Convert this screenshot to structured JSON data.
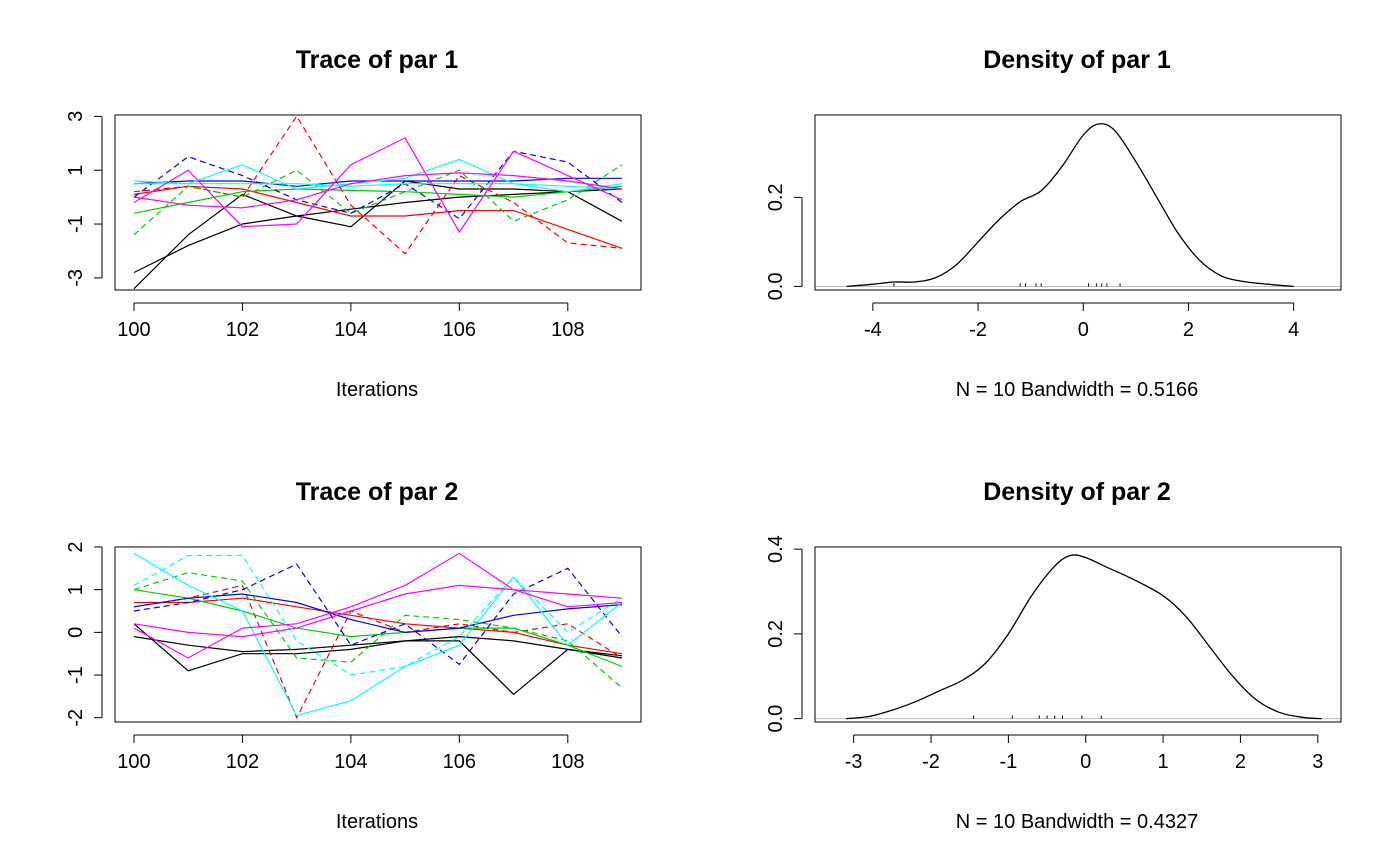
{
  "chart_data": [
    {
      "id": "trace1",
      "type": "line",
      "title": "Trace of par 1",
      "xlabel": "Iterations",
      "ylabel": "",
      "xlim": [
        99.65,
        109.35
      ],
      "ylim": [
        -3.45,
        3.05
      ],
      "xticks": [
        "100",
        "102",
        "104",
        "106",
        "108"
      ],
      "yticks": [
        "-3",
        "-1",
        "1",
        "3"
      ],
      "x": [
        100,
        101,
        102,
        103,
        104,
        105,
        106,
        107,
        108,
        109
      ],
      "series": [
        {
          "color": "#000000",
          "dash": false,
          "values": [
            -3.4,
            -1.4,
            0.1,
            -0.7,
            -1.1,
            0.6,
            0.3,
            0.3,
            0.2,
            -0.9
          ]
        },
        {
          "color": "#000000",
          "dash": false,
          "values": [
            -2.8,
            -1.8,
            -1.0,
            -0.7,
            -0.45,
            -0.2,
            0.0,
            0.1,
            0.2,
            0.3
          ]
        },
        {
          "color": "#ff0000",
          "dash": true,
          "values": [
            0.2,
            0.4,
            0.0,
            3.0,
            -0.3,
            -2.1,
            0.8,
            -0.2,
            -1.7,
            -1.9
          ]
        },
        {
          "color": "#ff0000",
          "dash": false,
          "values": [
            0.1,
            0.4,
            0.3,
            -0.2,
            -0.7,
            -0.7,
            -0.5,
            -0.5,
            -1.2,
            -1.9
          ]
        },
        {
          "color": "#00cd00",
          "dash": true,
          "values": [
            -1.4,
            0.4,
            0.0,
            1.0,
            -0.6,
            0.2,
            1.0,
            -0.9,
            -0.1,
            1.2
          ]
        },
        {
          "color": "#00cd00",
          "dash": false,
          "values": [
            -0.6,
            -0.2,
            0.2,
            0.3,
            0.25,
            0.2,
            0.1,
            0.0,
            0.2,
            0.4
          ]
        },
        {
          "color": "#0000ff",
          "dash": true,
          "values": [
            0.0,
            1.5,
            0.8,
            -0.1,
            -0.6,
            0.5,
            -0.8,
            1.7,
            1.3,
            -0.2
          ]
        },
        {
          "color": "#0000ff",
          "dash": false,
          "values": [
            0.5,
            0.6,
            0.6,
            0.4,
            0.6,
            0.6,
            0.6,
            0.6,
            0.7,
            0.7
          ]
        },
        {
          "color": "#00ffff",
          "dash": false,
          "values": [
            0.6,
            0.5,
            1.2,
            0.3,
            0.5,
            0.7,
            1.4,
            0.5,
            0.2,
            0.5
          ]
        },
        {
          "color": "#00ffff",
          "dash": false,
          "values": [
            0.5,
            0.5,
            0.5,
            0.5,
            0.4,
            0.5,
            0.5,
            0.5,
            0.4,
            0.3
          ]
        },
        {
          "color": "#ff00ff",
          "dash": false,
          "values": [
            -0.2,
            1.0,
            -1.1,
            -1.0,
            1.2,
            2.2,
            -1.3,
            1.7,
            0.8,
            -0.1
          ]
        },
        {
          "color": "#ff00ff",
          "dash": false,
          "values": [
            0.0,
            -0.3,
            -0.4,
            -0.1,
            0.5,
            0.8,
            0.9,
            0.8,
            0.6,
            0.3
          ]
        }
      ]
    },
    {
      "id": "density1",
      "type": "line",
      "title": "Density of par 1",
      "xlabel": "N = 10   Bandwidth = 0.5166",
      "ylabel": "",
      "xlim": [
        -5.1,
        4.9
      ],
      "ylim": [
        -0.008,
        0.385
      ],
      "xticks": [
        "-4",
        "-2",
        "0",
        "2",
        "4"
      ],
      "yticks": [
        "0.0",
        "0.2"
      ],
      "x": [
        -4.5,
        -4.0,
        -3.6,
        -3.2,
        -2.8,
        -2.4,
        -2.0,
        -1.6,
        -1.2,
        -0.8,
        -0.4,
        0.0,
        0.3,
        0.6,
        1.0,
        1.4,
        1.8,
        2.2,
        2.6,
        3.0,
        3.5,
        4.0
      ],
      "values": [
        0.0,
        0.005,
        0.01,
        0.01,
        0.02,
        0.05,
        0.1,
        0.15,
        0.19,
        0.215,
        0.27,
        0.34,
        0.365,
        0.35,
        0.28,
        0.2,
        0.12,
        0.06,
        0.025,
        0.012,
        0.005,
        0.0
      ],
      "rug": [
        -3.6,
        -1.2,
        -1.1,
        -0.9,
        -0.8,
        0.1,
        0.25,
        0.35,
        0.45,
        0.7
      ]
    },
    {
      "id": "trace2",
      "type": "line",
      "title": "Trace of par 2",
      "xlabel": "Iterations",
      "ylabel": "",
      "xlim": [
        99.65,
        109.35
      ],
      "ylim": [
        -2.1,
        2.0
      ],
      "xticks": [
        "100",
        "102",
        "104",
        "106",
        "108"
      ],
      "yticks": [
        "-2",
        "-1",
        "0",
        "1",
        "2"
      ],
      "x": [
        100,
        101,
        102,
        103,
        104,
        105,
        106,
        107,
        108,
        109
      ],
      "series": [
        {
          "color": "#000000",
          "dash": false,
          "values": [
            0.2,
            -0.9,
            -0.5,
            -0.5,
            -0.4,
            -0.2,
            -0.2,
            -1.45,
            -0.4,
            -0.6
          ]
        },
        {
          "color": "#000000",
          "dash": false,
          "values": [
            -0.1,
            -0.3,
            -0.45,
            -0.4,
            -0.3,
            -0.2,
            -0.1,
            -0.2,
            -0.4,
            -0.55
          ]
        },
        {
          "color": "#ff0000",
          "dash": true,
          "values": [
            0.6,
            0.8,
            1.1,
            -2.0,
            0.5,
            0.0,
            0.2,
            0.0,
            0.2,
            -0.6
          ]
        },
        {
          "color": "#ff0000",
          "dash": false,
          "values": [
            0.7,
            0.7,
            0.8,
            0.6,
            0.4,
            0.2,
            0.1,
            0.0,
            -0.3,
            -0.5
          ]
        },
        {
          "color": "#00cd00",
          "dash": true,
          "values": [
            1.0,
            1.4,
            1.2,
            -0.6,
            -0.7,
            0.4,
            0.3,
            0.1,
            -0.2,
            -1.3
          ]
        },
        {
          "color": "#00cd00",
          "dash": false,
          "values": [
            1.0,
            0.8,
            0.5,
            0.1,
            -0.1,
            0.0,
            0.1,
            0.1,
            -0.3,
            -0.8
          ]
        },
        {
          "color": "#0000ff",
          "dash": true,
          "values": [
            0.5,
            0.7,
            1.0,
            1.6,
            -0.3,
            0.2,
            -0.75,
            0.9,
            1.5,
            -0.1
          ]
        },
        {
          "color": "#0000ff",
          "dash": false,
          "values": [
            0.6,
            0.8,
            0.9,
            0.7,
            0.3,
            0.0,
            0.1,
            0.4,
            0.55,
            0.65
          ]
        },
        {
          "color": "#00ffff",
          "dash": false,
          "values": [
            1.85,
            1.1,
            0.5,
            -1.95,
            -1.6,
            -0.8,
            -0.3,
            1.3,
            -0.3,
            0.7
          ]
        },
        {
          "color": "#00ffff",
          "dash": true,
          "values": [
            1.1,
            1.8,
            1.8,
            -0.2,
            -1.0,
            -0.8,
            -0.1,
            1.3,
            0.0,
            0.8
          ]
        },
        {
          "color": "#ff00ff",
          "dash": false,
          "values": [
            0.1,
            -0.6,
            0.1,
            0.2,
            0.6,
            1.1,
            1.85,
            1.0,
            0.6,
            0.7
          ]
        },
        {
          "color": "#ff00ff",
          "dash": false,
          "values": [
            0.2,
            0.0,
            -0.1,
            0.1,
            0.5,
            0.9,
            1.1,
            1.0,
            0.9,
            0.8
          ]
        }
      ]
    },
    {
      "id": "density2",
      "type": "line",
      "title": "Density of par 2",
      "xlabel": "N = 10   Bandwidth = 0.4327",
      "ylabel": "",
      "xlim": [
        -3.5,
        3.3
      ],
      "ylim": [
        -0.008,
        0.405
      ],
      "xticks": [
        "-3",
        "-2",
        "-1",
        "0",
        "1",
        "2",
        "3"
      ],
      "yticks": [
        "0.0",
        "0.2",
        "0.4"
      ],
      "x": [
        -3.1,
        -2.8,
        -2.5,
        -2.2,
        -1.9,
        -1.6,
        -1.3,
        -1.0,
        -0.7,
        -0.4,
        -0.2,
        0.0,
        0.3,
        0.6,
        1.0,
        1.3,
        1.6,
        1.9,
        2.2,
        2.5,
        2.8,
        3.05
      ],
      "values": [
        0.0,
        0.005,
        0.02,
        0.04,
        0.065,
        0.09,
        0.13,
        0.2,
        0.29,
        0.36,
        0.385,
        0.38,
        0.355,
        0.33,
        0.29,
        0.24,
        0.17,
        0.1,
        0.045,
        0.015,
        0.003,
        0.0
      ],
      "rug": [
        -1.45,
        -0.95,
        -0.6,
        -0.5,
        -0.4,
        -0.3,
        -0.05,
        0.2
      ]
    }
  ]
}
